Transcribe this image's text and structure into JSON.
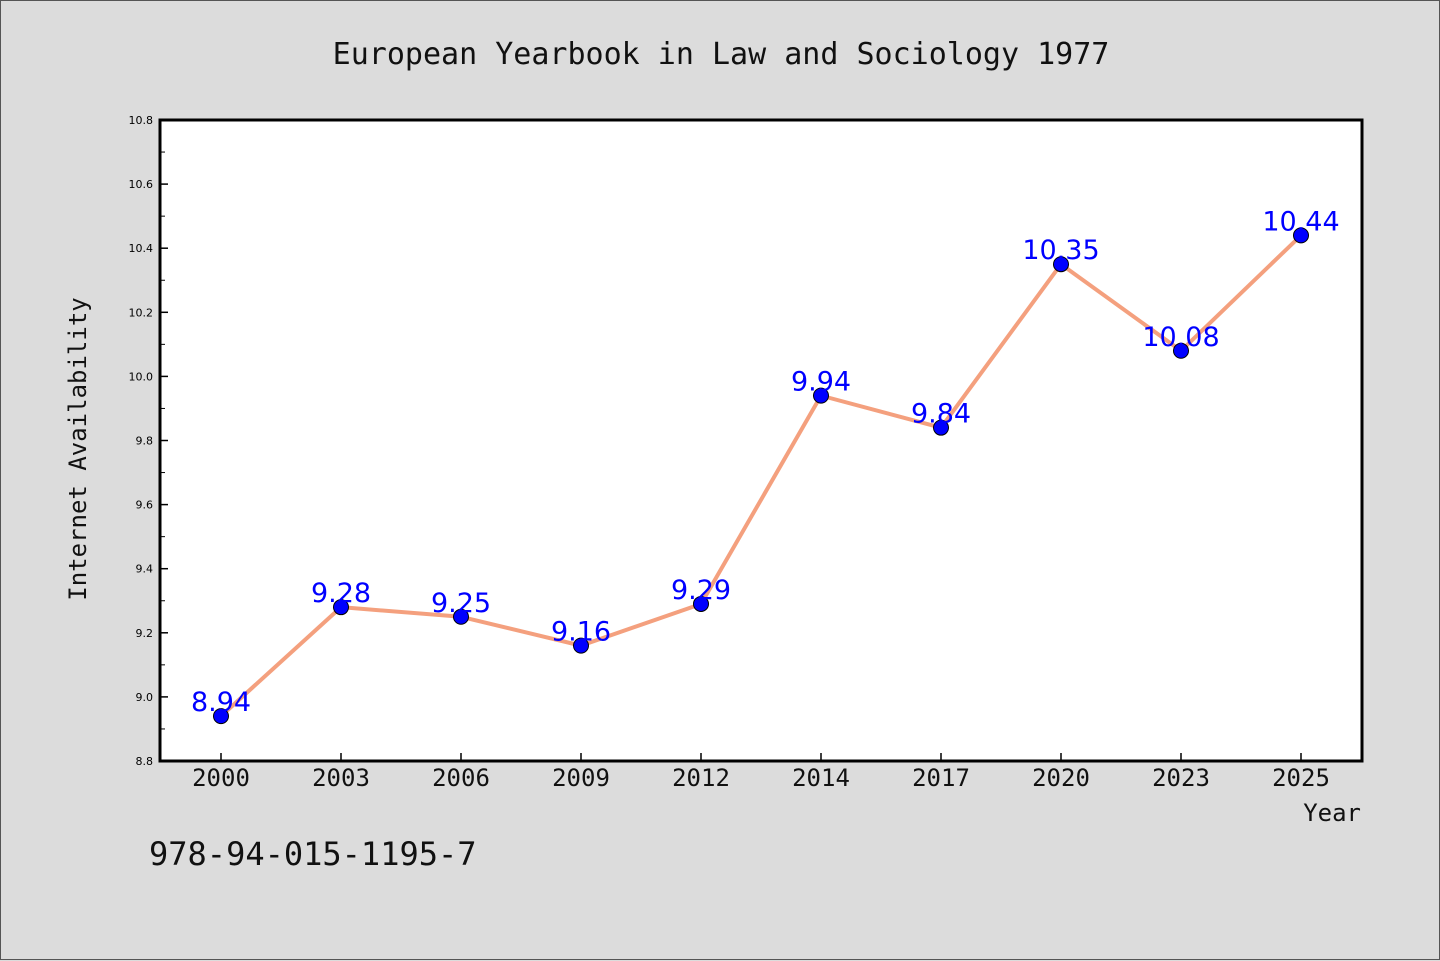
{
  "chart_data": {
    "type": "line",
    "title": "European Yearbook in Law and Sociology 1977",
    "xlabel": "Year",
    "ylabel": "Internet Availability",
    "categories": [
      "2000",
      "2003",
      "2006",
      "2009",
      "2012",
      "2014",
      "2017",
      "2020",
      "2023",
      "2025"
    ],
    "values": [
      8.94,
      9.28,
      9.25,
      9.16,
      9.29,
      9.94,
      9.84,
      10.35,
      10.08,
      10.44
    ],
    "data_labels": [
      "8.94",
      "9.28",
      "9.25",
      "9.16",
      "9.29",
      "9.94",
      "9.84",
      "10.35",
      "10.08",
      "10.44"
    ],
    "ylim": [
      8.8,
      10.8
    ],
    "yticks": [
      "8.8",
      "9.0",
      "9.2",
      "9.4",
      "9.6",
      "9.8",
      "10.0",
      "10.2",
      "10.4",
      "10.6",
      "10.8"
    ],
    "grid": false,
    "line_color": "#f4a07e",
    "marker_color": "#0000ff",
    "label_color": "#0000ff",
    "background_color": "#dcdcdc",
    "plot_background_color": "#ffffff"
  },
  "annotation": "978-94-015-1195-7"
}
